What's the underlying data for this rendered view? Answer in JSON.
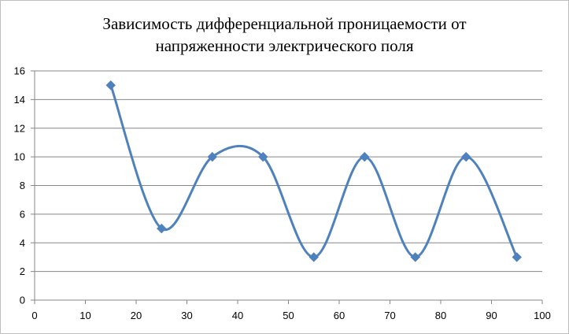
{
  "chart_data": {
    "type": "line",
    "title_lines": [
      "Зависимость дифференциальной  проницаемости от",
      "напряженности электрического поля"
    ],
    "xlabel": "",
    "ylabel": "",
    "xlim": [
      0,
      100
    ],
    "ylim": [
      0,
      16
    ],
    "x_ticks": [
      0,
      10,
      20,
      30,
      40,
      50,
      60,
      70,
      80,
      90,
      100
    ],
    "y_ticks": [
      0,
      2,
      4,
      6,
      8,
      10,
      12,
      14,
      16
    ],
    "grid": "horizontal",
    "legend": "none",
    "smooth": true,
    "series": [
      {
        "color": "#4f81bd",
        "marker": "diamond",
        "x": [
          15,
          25,
          35,
          45,
          55,
          65,
          75,
          85,
          95
        ],
        "y": [
          15,
          5,
          10,
          10,
          3,
          10,
          3,
          10,
          3
        ]
      }
    ]
  }
}
